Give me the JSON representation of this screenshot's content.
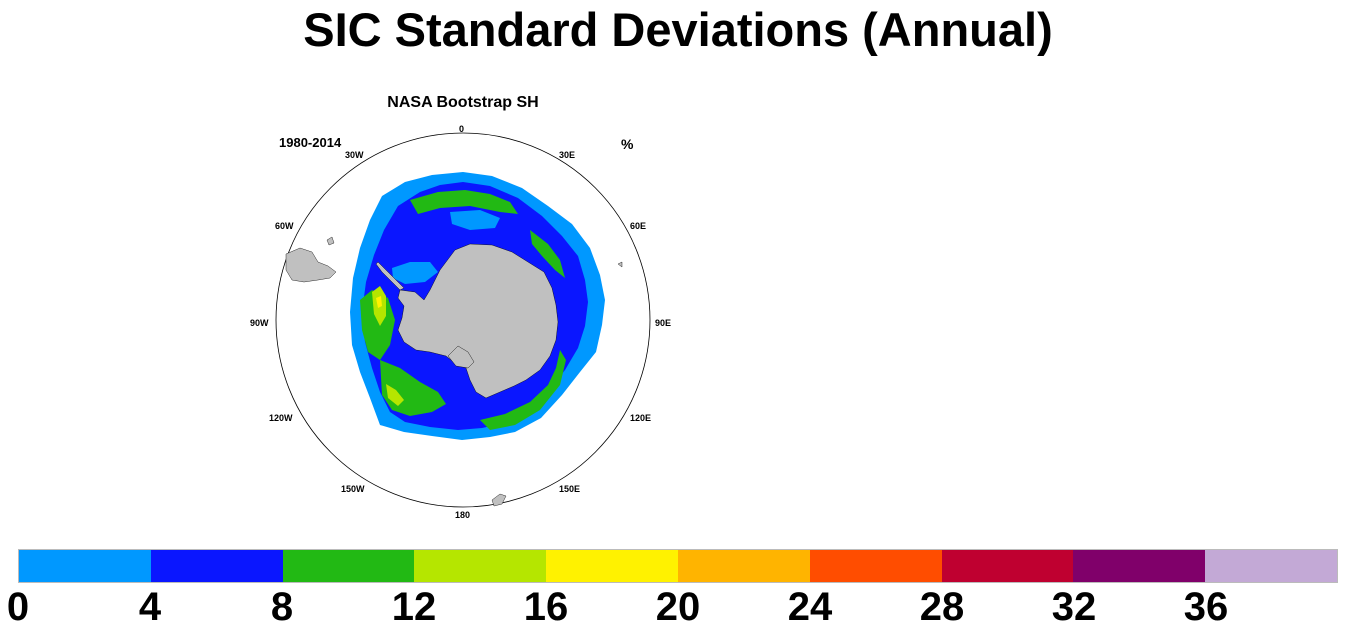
{
  "title": "SIC Standard Deviations (Annual)",
  "panel": {
    "title": "NASA Bootstrap SH",
    "period": "1980-2014",
    "units": "%"
  },
  "longitude_labels": [
    "0",
    "30E",
    "60E",
    "90E",
    "120E",
    "150E",
    "180",
    "150W",
    "120W",
    "90W",
    "60W",
    "30W"
  ],
  "colorbar": {
    "labels": [
      "0",
      "4",
      "8",
      "12",
      "16",
      "20",
      "24",
      "28",
      "32",
      "36"
    ],
    "colors": [
      "#0098ff",
      "#0a16ff",
      "#22b914",
      "#b5e600",
      "#fff200",
      "#ffb400",
      "#ff4d00",
      "#bf0030",
      "#80006a",
      "#c3a9d6"
    ]
  },
  "map_colors": {
    "land": "#c0c0c0",
    "ocean": "#ffffff",
    "border": "#000000"
  }
}
